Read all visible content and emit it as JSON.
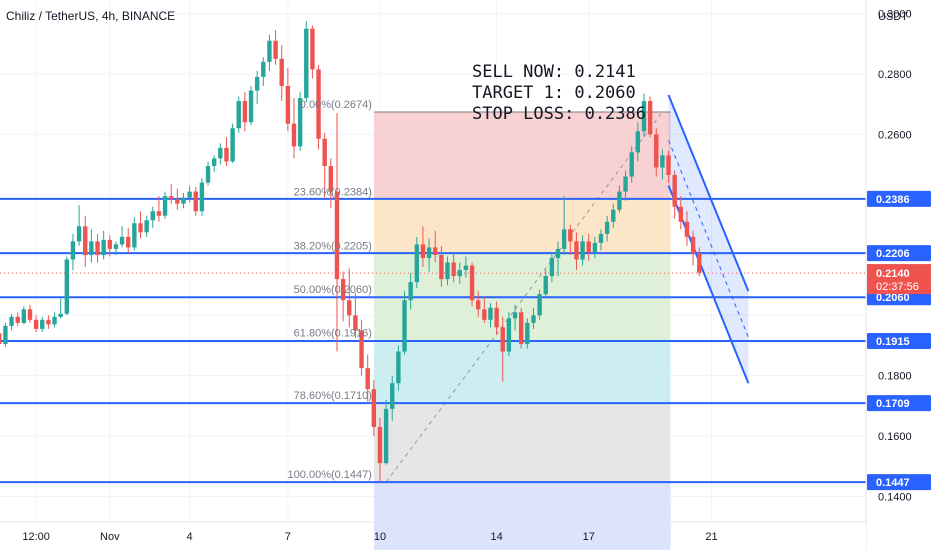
{
  "header": {
    "title": "Chiliz / TetherUS, 4h, BINANCE"
  },
  "annotation": {
    "lines": [
      "SELL NOW: 0.2141",
      "TARGET 1: 0.2060",
      "STOP LOSS: 0.2386"
    ]
  },
  "colors": {
    "up": "#26a69a",
    "down": "#ef5350",
    "level_line": "#2962ff",
    "fib_red": "#f8d2d2",
    "fib_orange": "#fde6c8",
    "fib_green": "#dff0d8",
    "fib_teal": "#cdeef0",
    "fib_gray": "#e6e6e6",
    "fib_blue": "#dbe4fb",
    "current_price": "#ef5350"
  },
  "chart_data": {
    "type": "candlestick",
    "title": "Chiliz / TetherUS, 4h, BINANCE",
    "yaxis_unit": "USDT",
    "ylim": [
      0.1315,
      0.3045
    ],
    "yticks": [
      0.3,
      0.28,
      0.26,
      0.18,
      0.16,
      0.14
    ],
    "ytick_labels": [
      "0.3000",
      "0.2800",
      "0.2600",
      "0.1800",
      "0.1600",
      "0.1400"
    ],
    "xticks": [
      {
        "label": "12:00",
        "index": 8
      },
      {
        "label": "Nov",
        "index": 20
      },
      {
        "label": "4",
        "index": 33
      },
      {
        "label": "7",
        "index": 49
      },
      {
        "label": "10",
        "index": 64
      },
      {
        "label": "14",
        "index": 83
      },
      {
        "label": "17",
        "index": 98
      },
      {
        "label": "21",
        "index": 118
      }
    ],
    "candles": [
      [
        0.196,
        0.1985,
        0.191,
        0.1925
      ],
      [
        0.1925,
        0.195,
        0.19,
        0.194
      ],
      [
        0.194,
        0.1955,
        0.189,
        0.1905
      ],
      [
        0.1905,
        0.1975,
        0.1895,
        0.1965
      ],
      [
        0.1965,
        0.2005,
        0.195,
        0.1995
      ],
      [
        0.1995,
        0.201,
        0.1965,
        0.1975
      ],
      [
        0.1975,
        0.203,
        0.197,
        0.202
      ],
      [
        0.202,
        0.2035,
        0.1975,
        0.1985
      ],
      [
        0.1985,
        0.2,
        0.1945,
        0.1955
      ],
      [
        0.1955,
        0.1995,
        0.1945,
        0.1985
      ],
      [
        0.1985,
        0.2,
        0.1955,
        0.197
      ],
      [
        0.197,
        0.201,
        0.196,
        0.1995
      ],
      [
        0.1995,
        0.2055,
        0.199,
        0.2005
      ],
      [
        0.2005,
        0.2195,
        0.2,
        0.2185
      ],
      [
        0.2185,
        0.227,
        0.215,
        0.2245
      ],
      [
        0.2245,
        0.2365,
        0.223,
        0.2295
      ],
      [
        0.2295,
        0.233,
        0.216,
        0.22
      ],
      [
        0.22,
        0.2285,
        0.2175,
        0.2245
      ],
      [
        0.2245,
        0.227,
        0.2175,
        0.22
      ],
      [
        0.22,
        0.228,
        0.2185,
        0.225
      ],
      [
        0.225,
        0.2265,
        0.2195,
        0.222
      ],
      [
        0.222,
        0.2245,
        0.22,
        0.2235
      ],
      [
        0.2235,
        0.2295,
        0.2225,
        0.226
      ],
      [
        0.226,
        0.229,
        0.2205,
        0.2225
      ],
      [
        0.2225,
        0.2325,
        0.2215,
        0.2305
      ],
      [
        0.2305,
        0.2345,
        0.2255,
        0.2275
      ],
      [
        0.2275,
        0.233,
        0.226,
        0.2315
      ],
      [
        0.2315,
        0.236,
        0.229,
        0.2345
      ],
      [
        0.2345,
        0.2395,
        0.231,
        0.233
      ],
      [
        0.233,
        0.241,
        0.232,
        0.2395
      ],
      [
        0.2395,
        0.2435,
        0.237,
        0.2385
      ],
      [
        0.2385,
        0.242,
        0.235,
        0.237
      ],
      [
        0.237,
        0.2405,
        0.2355,
        0.239
      ],
      [
        0.239,
        0.243,
        0.2375,
        0.241
      ],
      [
        0.241,
        0.2425,
        0.233,
        0.2345
      ],
      [
        0.2345,
        0.2455,
        0.233,
        0.244
      ],
      [
        0.244,
        0.251,
        0.243,
        0.2495
      ],
      [
        0.2495,
        0.253,
        0.2475,
        0.252
      ],
      [
        0.252,
        0.257,
        0.25,
        0.2555
      ],
      [
        0.2555,
        0.259,
        0.2495,
        0.251
      ],
      [
        0.251,
        0.2635,
        0.2505,
        0.262
      ],
      [
        0.262,
        0.2725,
        0.2605,
        0.271
      ],
      [
        0.271,
        0.274,
        0.261,
        0.264
      ],
      [
        0.264,
        0.276,
        0.263,
        0.2745
      ],
      [
        0.2745,
        0.281,
        0.27,
        0.279
      ],
      [
        0.279,
        0.2855,
        0.276,
        0.284
      ],
      [
        0.284,
        0.293,
        0.281,
        0.291
      ],
      [
        0.291,
        0.2945,
        0.283,
        0.285
      ],
      [
        0.285,
        0.2895,
        0.271,
        0.276
      ],
      [
        0.276,
        0.282,
        0.261,
        0.2635
      ],
      [
        0.2635,
        0.272,
        0.252,
        0.256
      ],
      [
        0.256,
        0.274,
        0.2545,
        0.272
      ],
      [
        0.272,
        0.2975,
        0.2705,
        0.295
      ],
      [
        0.295,
        0.296,
        0.2785,
        0.2815
      ],
      [
        0.2815,
        0.283,
        0.255,
        0.2585
      ],
      [
        0.2585,
        0.2605,
        0.239,
        0.2495
      ],
      [
        0.2495,
        0.252,
        0.2355,
        0.241
      ],
      [
        0.241,
        0.267,
        0.188,
        0.212
      ],
      [
        0.212,
        0.2145,
        0.198,
        0.205
      ],
      [
        0.205,
        0.2155,
        0.196,
        0.2
      ],
      [
        0.2,
        0.2075,
        0.1925,
        0.195
      ],
      [
        0.195,
        0.1985,
        0.18,
        0.1825
      ],
      [
        0.1825,
        0.187,
        0.1715,
        0.1755
      ],
      [
        0.1755,
        0.1785,
        0.16,
        0.163
      ],
      [
        0.163,
        0.166,
        0.1445,
        0.151
      ],
      [
        0.151,
        0.172,
        0.1505,
        0.169
      ],
      [
        0.169,
        0.18,
        0.165,
        0.1775
      ],
      [
        0.1775,
        0.19,
        0.175,
        0.188
      ],
      [
        0.188,
        0.208,
        0.187,
        0.205
      ],
      [
        0.205,
        0.214,
        0.202,
        0.211
      ],
      [
        0.211,
        0.226,
        0.209,
        0.2235
      ],
      [
        0.2235,
        0.2295,
        0.216,
        0.219
      ],
      [
        0.219,
        0.2255,
        0.2145,
        0.2225
      ],
      [
        0.2225,
        0.228,
        0.2175,
        0.22
      ],
      [
        0.22,
        0.223,
        0.2095,
        0.212
      ],
      [
        0.212,
        0.2195,
        0.21,
        0.2175
      ],
      [
        0.2175,
        0.2205,
        0.211,
        0.213
      ],
      [
        0.213,
        0.2175,
        0.2105,
        0.215
      ],
      [
        0.215,
        0.2195,
        0.2125,
        0.2165
      ],
      [
        0.2165,
        0.2175,
        0.203,
        0.205
      ],
      [
        0.205,
        0.208,
        0.1995,
        0.202
      ],
      [
        0.202,
        0.206,
        0.1975,
        0.1985
      ],
      [
        0.1985,
        0.204,
        0.196,
        0.2025
      ],
      [
        0.2025,
        0.2045,
        0.1935,
        0.196
      ],
      [
        0.196,
        0.1995,
        0.178,
        0.188
      ],
      [
        0.188,
        0.201,
        0.1865,
        0.199
      ],
      [
        0.199,
        0.2035,
        0.195,
        0.201
      ],
      [
        0.201,
        0.2025,
        0.189,
        0.1905
      ],
      [
        0.1905,
        0.199,
        0.189,
        0.1975
      ],
      [
        0.1975,
        0.2025,
        0.1955,
        0.2
      ],
      [
        0.2,
        0.2085,
        0.1985,
        0.207
      ],
      [
        0.207,
        0.215,
        0.2055,
        0.213
      ],
      [
        0.213,
        0.221,
        0.211,
        0.219
      ],
      [
        0.219,
        0.2245,
        0.213,
        0.222
      ],
      [
        0.222,
        0.2395,
        0.22,
        0.2285
      ],
      [
        0.2285,
        0.23,
        0.22,
        0.2245
      ],
      [
        0.2245,
        0.2275,
        0.215,
        0.2185
      ],
      [
        0.2185,
        0.2265,
        0.2165,
        0.2245
      ],
      [
        0.2245,
        0.227,
        0.218,
        0.221
      ],
      [
        0.221,
        0.226,
        0.219,
        0.224
      ],
      [
        0.224,
        0.2285,
        0.2215,
        0.227
      ],
      [
        0.227,
        0.233,
        0.2245,
        0.231
      ],
      [
        0.231,
        0.237,
        0.229,
        0.235
      ],
      [
        0.235,
        0.243,
        0.234,
        0.241
      ],
      [
        0.241,
        0.248,
        0.238,
        0.246
      ],
      [
        0.246,
        0.256,
        0.244,
        0.254
      ],
      [
        0.254,
        0.264,
        0.251,
        0.261
      ],
      [
        0.261,
        0.2735,
        0.259,
        0.271
      ],
      [
        0.271,
        0.2725,
        0.259,
        0.26
      ],
      [
        0.26,
        0.262,
        0.246,
        0.249
      ],
      [
        0.249,
        0.255,
        0.245,
        0.253
      ],
      [
        0.253,
        0.2545,
        0.244,
        0.2465
      ],
      [
        0.2465,
        0.248,
        0.232,
        0.236
      ],
      [
        0.236,
        0.2395,
        0.2285,
        0.231
      ],
      [
        0.231,
        0.2345,
        0.223,
        0.226
      ],
      [
        0.226,
        0.228,
        0.2165,
        0.2205
      ],
      [
        0.2205,
        0.2225,
        0.213,
        0.2141
      ]
    ],
    "horizontal_levels": [
      {
        "value": 0.2386,
        "label": "0.2386"
      },
      {
        "value": 0.2206,
        "label": "0.2206"
      },
      {
        "value": 0.206,
        "label": "0.2060"
      },
      {
        "value": 0.1915,
        "label": "0.1915"
      },
      {
        "value": 0.1709,
        "label": "0.1709"
      },
      {
        "value": 0.1447,
        "label": "0.1447"
      }
    ],
    "current_price": {
      "value": 0.214,
      "label": "0.2140",
      "countdown": "02:37:56"
    },
    "fibonacci": {
      "start_index": 64,
      "end_index": 111,
      "extend_to_index": 113,
      "levels": [
        {
          "ratio_label": "0.00%",
          "value": 0.2674,
          "label": "0.00%(0.2674)",
          "fill": "none"
        },
        {
          "ratio_label": "23.60%",
          "value": 0.2384,
          "label": "23.60%(0.2384)",
          "fill": "fib_red"
        },
        {
          "ratio_label": "38.20%",
          "value": 0.2205,
          "label": "38.20%(0.2205)",
          "fill": "fib_orange"
        },
        {
          "ratio_label": "50.00%",
          "value": 0.206,
          "label": "50.00%(0.2060)",
          "fill": "fib_green"
        },
        {
          "ratio_label": "61.80%",
          "value": 0.1916,
          "label": "61.80%(0.1916)",
          "fill": "fib_green"
        },
        {
          "ratio_label": "78.60%",
          "value": 0.171,
          "label": "78.60%(0.1710)",
          "fill": "fib_teal"
        },
        {
          "ratio_label": "100.00%",
          "value": 0.1447,
          "label": "100.00%(0.1447)",
          "fill": "fib_gray"
        }
      ],
      "below_fill": "fib_blue",
      "trend_line": {
        "from": {
          "index": 65,
          "value": 0.1447
        },
        "to": {
          "index": 110,
          "value": 0.2674
        }
      }
    },
    "descending_channel": {
      "upper": {
        "from": {
          "index": 111,
          "value": 0.273
        },
        "to": {
          "index": 124,
          "value": 0.208
        }
      },
      "lower": {
        "from": {
          "index": 111,
          "value": 0.243
        },
        "to": {
          "index": 124,
          "value": 0.1775
        }
      },
      "midline": true
    },
    "legend": "none",
    "grid": true
  }
}
